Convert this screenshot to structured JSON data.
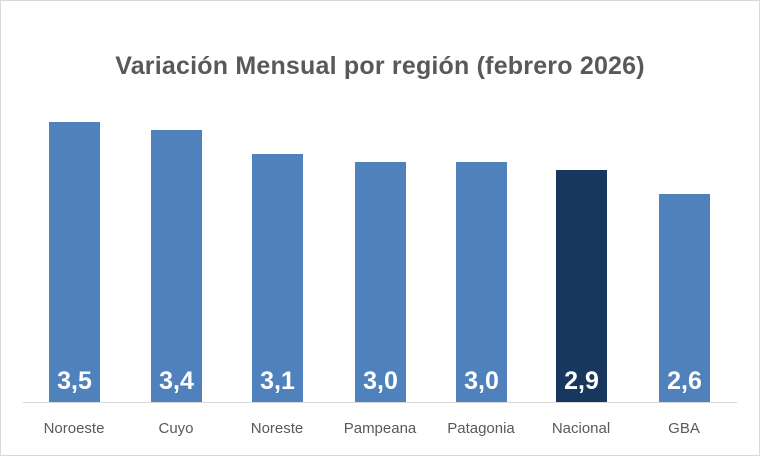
{
  "chart_data": {
    "type": "bar",
    "title": "Variación Mensual por región (febrero 2026)",
    "categories": [
      "Noroeste",
      "Cuyo",
      "Noreste",
      "Pampeana",
      "Patagonia",
      "Nacional",
      "GBA"
    ],
    "values": [
      3.5,
      3.4,
      3.1,
      3.0,
      3.0,
      2.9,
      2.6
    ],
    "value_labels": [
      "3,5",
      "3,4",
      "3,1",
      "3,0",
      "3,0",
      "2,9",
      "2,6"
    ],
    "xlabel": "",
    "ylabel": "",
    "grid": false,
    "legend": "none",
    "data_labels": "inside-base",
    "colors": {
      "default_bar": "#4f81bd",
      "highlight_bar": "#17375e",
      "highlight_category": "Nacional",
      "title_text": "#595959",
      "axis_text": "#595959"
    }
  }
}
